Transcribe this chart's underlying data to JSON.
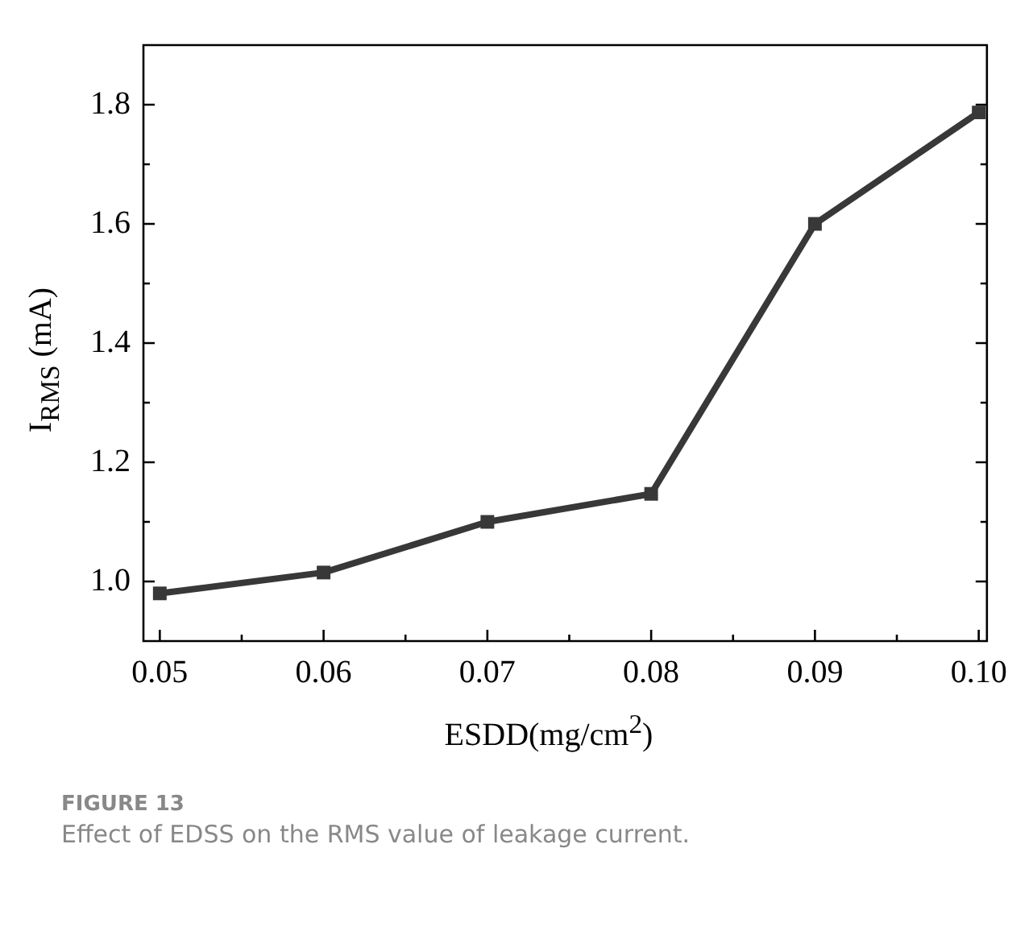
{
  "chart_data": {
    "type": "line",
    "xlabel": "ESDD(mg/cm$^{2}$)",
    "ylabel": "I$_{RMS}$ (mA)",
    "x": [
      0.05,
      0.06,
      0.07,
      0.08,
      0.09,
      0.1
    ],
    "series": [
      {
        "color": "#383838",
        "values": [
          0.98,
          1.015,
          1.1,
          1.147,
          1.6,
          1.787
        ]
      }
    ],
    "xlim": [
      0.049,
      0.1005
    ],
    "xticks": [
      {
        "value": 0.05,
        "label": "0.05"
      },
      {
        "value": 0.055,
        "label": null
      },
      {
        "value": 0.06,
        "label": "0.06"
      },
      {
        "value": 0.065,
        "label": null
      },
      {
        "value": 0.07,
        "label": "0.07"
      },
      {
        "value": 0.075,
        "label": null
      },
      {
        "value": 0.08,
        "label": "0.08"
      },
      {
        "value": 0.085,
        "label": null
      },
      {
        "value": 0.09,
        "label": "0.09"
      },
      {
        "value": 0.095,
        "label": null
      },
      {
        "value": 0.1,
        "label": "0.10"
      }
    ],
    "ylim": [
      0.9,
      1.9
    ],
    "yticks": [
      {
        "value": 1.0,
        "label": "1.0"
      },
      {
        "value": 1.1,
        "label": null
      },
      {
        "value": 1.2,
        "label": "1.2"
      },
      {
        "value": 1.3,
        "label": null
      },
      {
        "value": 1.4,
        "label": "1.4"
      },
      {
        "value": 1.5,
        "label": null
      },
      {
        "value": 1.6,
        "label": "1.6"
      },
      {
        "value": 1.7,
        "label": null
      },
      {
        "value": 1.8,
        "label": "1.8"
      }
    ],
    "marker": "square",
    "line_style": "solid",
    "grid": false,
    "legend": false,
    "annotations": [
      "FIGURE 13",
      "Effect of EDSS on the RMS value of leakage current."
    ]
  }
}
